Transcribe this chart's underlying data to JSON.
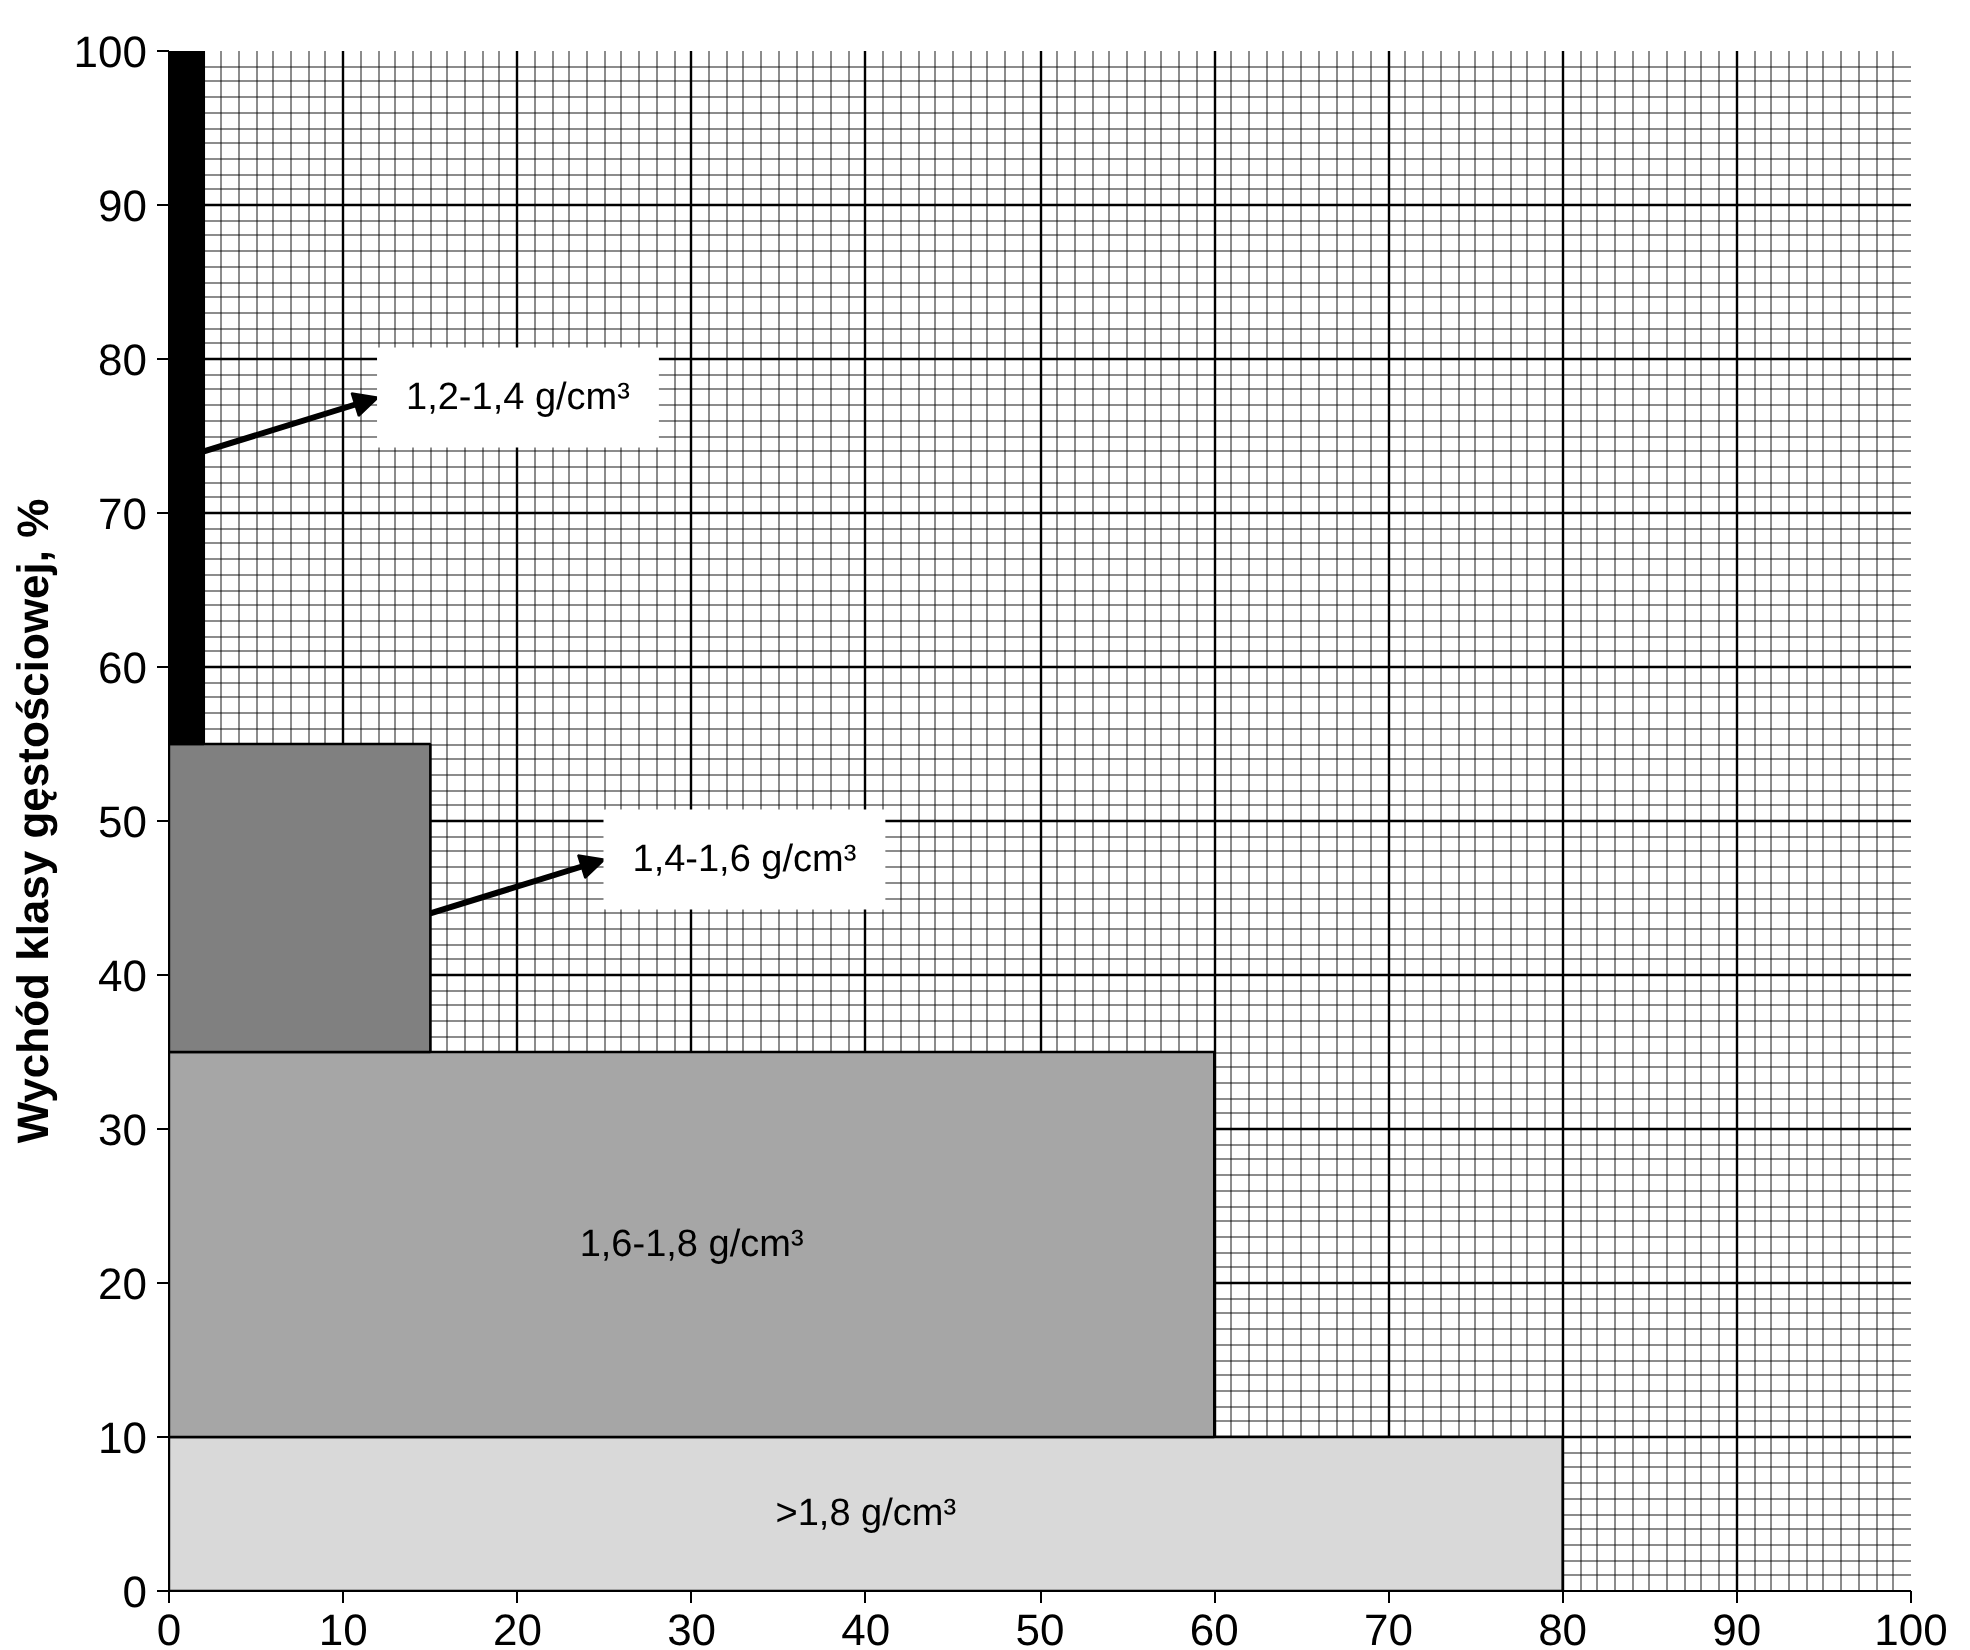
{
  "chart_data": {
    "type": "area",
    "stacked": true,
    "ylabel": "Wychód klasy gęstościowej, %",
    "xlim": [
      0,
      100
    ],
    "xticks": [
      0,
      10,
      20,
      30,
      40,
      50,
      60,
      70,
      80,
      90,
      100
    ],
    "ylim": [
      0,
      100
    ],
    "yticks": [
      0,
      10,
      20,
      30,
      40,
      50,
      60,
      70,
      80,
      90,
      100
    ],
    "grid": true,
    "series": [
      {
        "color": "#d9d9d9",
        "x": [
          0,
          80
        ],
        "values": [
          10,
          10
        ]
      },
      {
        "color": "#a6a6a6",
        "x": [
          0,
          60
        ],
        "values": [
          25,
          25
        ]
      },
      {
        "color": "#808080",
        "x": [
          0,
          15
        ],
        "values": [
          20,
          20
        ]
      },
      {
        "color": "#000000",
        "x": [
          0,
          2
        ],
        "values": [
          45,
          45
        ]
      }
    ],
    "annotations": [
      {
        "text": "1,2-1,4 g/cm³",
        "x": 2,
        "y": 74
      },
      {
        "text": "1,4-1,6 g/cm³",
        "x": 15,
        "y": 44
      },
      ">1,8 g/cm³",
      "1,6-1,8 g/cm³"
    ]
  }
}
